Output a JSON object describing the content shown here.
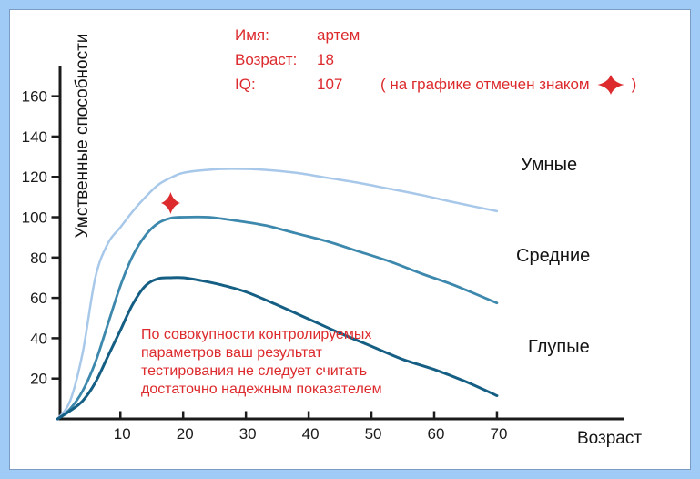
{
  "colors": {
    "frame_blue": "#a0cbf7",
    "panel_border": "#7b9cc2",
    "accent_red": "#dc2a2d",
    "axis_black": "#1b1b1b"
  },
  "header": {
    "rows": [
      {
        "label": "Имя:",
        "value": "артем"
      },
      {
        "label": "Возраст:",
        "value": "18"
      },
      {
        "label": "IQ:",
        "value": "107"
      }
    ],
    "note_prefix": "( на графике отмечен знаком",
    "note_suffix": ")"
  },
  "warning": "По совокупности контролируемых\nпараметров ваш результат\nтестирования не следует считать\nдостаточно надежным показателем",
  "chart_data": {
    "type": "line",
    "title": "",
    "xlabel": "Возраст",
    "ylabel": "Умственные способности",
    "xlim": [
      0,
      90
    ],
    "ylim": [
      0,
      175
    ],
    "grid": false,
    "x_ticks": [
      10,
      20,
      30,
      40,
      50,
      60,
      70
    ],
    "y_ticks": [
      20,
      40,
      60,
      80,
      100,
      120,
      140,
      160
    ],
    "legend_position": "labels-at-right-of-curves",
    "marker": {
      "age": 18,
      "iq": 107,
      "symbol": "four-point-star",
      "color": "#dc2a2d"
    },
    "series": [
      {
        "name": "Умные",
        "color": "#a8c8ea",
        "points": [
          [
            0,
            0
          ],
          [
            2,
            9
          ],
          [
            4,
            33
          ],
          [
            6,
            70
          ],
          [
            8,
            87
          ],
          [
            10,
            95
          ],
          [
            12,
            103
          ],
          [
            14,
            110
          ],
          [
            16,
            116
          ],
          [
            18,
            119.5
          ],
          [
            20,
            122
          ],
          [
            24,
            123.5
          ],
          [
            28,
            124
          ],
          [
            33,
            123.5
          ],
          [
            38,
            122
          ],
          [
            43,
            119.5
          ],
          [
            48,
            117
          ],
          [
            53,
            114
          ],
          [
            58,
            111
          ],
          [
            63,
            107.5
          ],
          [
            70,
            103
          ]
        ]
      },
      {
        "name": "Средние",
        "color": "#3d88ad",
        "points": [
          [
            0,
            0
          ],
          [
            2,
            5
          ],
          [
            4,
            14
          ],
          [
            6,
            28
          ],
          [
            8,
            47
          ],
          [
            10,
            66
          ],
          [
            12,
            81
          ],
          [
            14,
            91
          ],
          [
            16,
            97
          ],
          [
            18,
            99.5
          ],
          [
            20,
            100
          ],
          [
            24,
            100
          ],
          [
            28,
            98.5
          ],
          [
            33,
            96
          ],
          [
            38,
            92
          ],
          [
            43,
            88
          ],
          [
            48,
            83
          ],
          [
            53,
            78
          ],
          [
            58,
            72
          ],
          [
            63,
            66.5
          ],
          [
            70,
            57.5
          ]
        ]
      },
      {
        "name": "Глупые",
        "color": "#155e84",
        "points": [
          [
            0,
            0
          ],
          [
            2,
            4
          ],
          [
            4,
            9
          ],
          [
            6,
            18
          ],
          [
            8,
            31
          ],
          [
            10,
            44
          ],
          [
            12,
            57
          ],
          [
            14,
            66
          ],
          [
            16,
            69.5
          ],
          [
            18,
            70
          ],
          [
            20,
            70
          ],
          [
            23,
            68.5
          ],
          [
            26,
            66.5
          ],
          [
            30,
            63
          ],
          [
            35,
            56.5
          ],
          [
            40,
            49.5
          ],
          [
            45,
            42.5
          ],
          [
            50,
            36
          ],
          [
            55,
            29.5
          ],
          [
            60,
            24.5
          ],
          [
            65,
            18.5
          ],
          [
            70,
            11.5
          ]
        ]
      }
    ]
  }
}
